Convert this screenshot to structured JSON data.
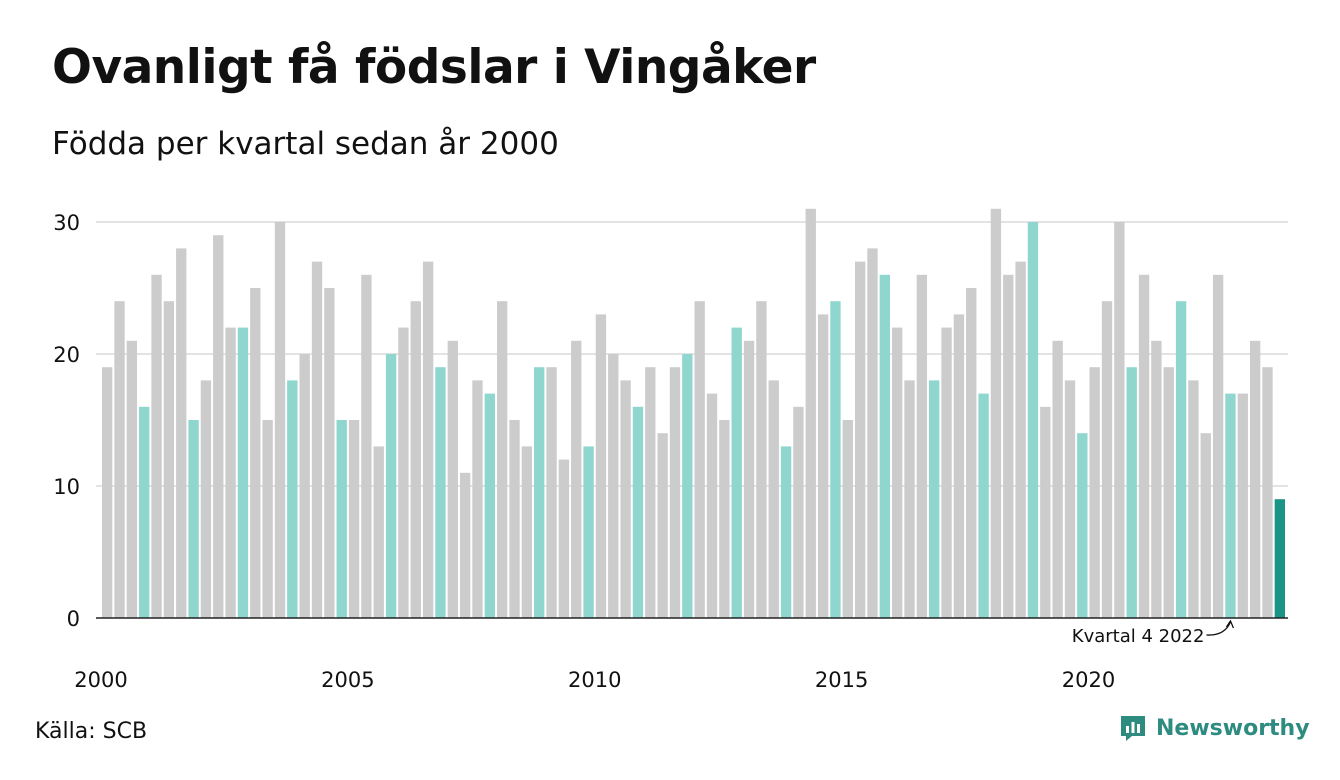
{
  "title": "Ovanligt få födslar i Vingåker",
  "subtitle": "Födda per kvartal sedan år 2000",
  "source": "Källa: SCB",
  "brand": "Newsworthy",
  "colors": {
    "default": "#cccccc",
    "q4": "#8fd6ce",
    "latest": "#1a9485",
    "brand": "#2e8b7f"
  },
  "chart_data": {
    "type": "bar",
    "title": "Ovanligt få födslar i Vingåker",
    "subtitle": "Födda per kvartal sedan år 2000",
    "xlabel": "",
    "ylabel": "",
    "ylim": [
      0,
      32
    ],
    "yticks": [
      0,
      10,
      20,
      30
    ],
    "xtick_labels": [
      "2000",
      "2005",
      "2010",
      "2015",
      "2020"
    ],
    "grid": true,
    "start_year": 2000,
    "values": [
      19,
      24,
      21,
      16,
      26,
      24,
      28,
      15,
      18,
      29,
      22,
      22,
      25,
      15,
      30,
      18,
      20,
      27,
      25,
      15,
      15,
      26,
      13,
      20,
      22,
      24,
      27,
      19,
      21,
      11,
      18,
      17,
      24,
      15,
      13,
      19,
      19,
      12,
      21,
      13,
      23,
      20,
      18,
      16,
      19,
      14,
      19,
      20,
      24,
      17,
      15,
      22,
      21,
      24,
      18,
      13,
      16,
      31,
      23,
      24,
      15,
      27,
      28,
      26,
      22,
      18,
      26,
      18,
      22,
      23,
      25,
      17,
      31,
      26,
      27,
      30,
      16,
      21,
      18,
      14,
      19,
      24,
      30,
      19,
      26,
      21,
      19,
      24,
      18,
      14,
      26,
      17,
      17,
      21,
      19,
      9
    ],
    "highlight_quarter": 4,
    "annotation": "Kvartal 4 2022"
  }
}
